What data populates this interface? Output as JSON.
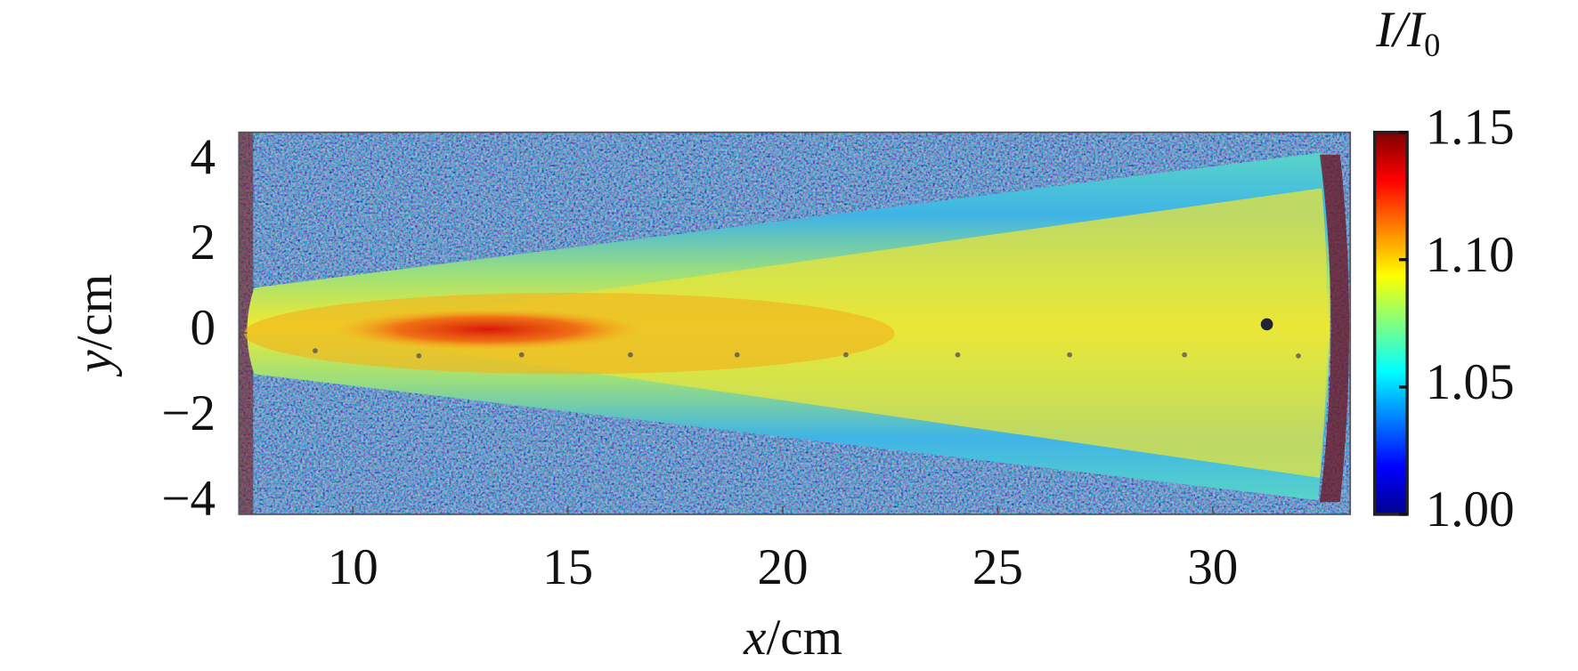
{
  "chart_data": {
    "type": "heatmap",
    "xlabel": [
      "x",
      "/cm"
    ],
    "ylabel": [
      "y",
      "/cm"
    ],
    "colorbar_label": [
      "I/I",
      "0"
    ],
    "xlim": [
      7.35,
      33.2
    ],
    "xticks": [
      10,
      15,
      20,
      25,
      30
    ],
    "ylim": [
      -4.25,
      4.7
    ],
    "yticks": [
      {
        "value": -4,
        "label": "−4"
      },
      {
        "value": -2,
        "label": "−2"
      },
      0,
      2,
      4
    ],
    "clim": [
      1.0,
      1.15
    ],
    "cticks": [
      {
        "value": 1.0,
        "label": "1.00"
      },
      {
        "value": 1.05,
        "label": "1.05"
      },
      {
        "value": 1.1,
        "label": "1.10"
      },
      {
        "value": 1.15,
        "label": "1.15"
      }
    ],
    "colormap": [
      "#00008f",
      "#0000ff",
      "#0080ff",
      "#00ffff",
      "#80ff80",
      "#ffff00",
      "#ff8000",
      "#ff0000",
      "#800000"
    ]
  }
}
